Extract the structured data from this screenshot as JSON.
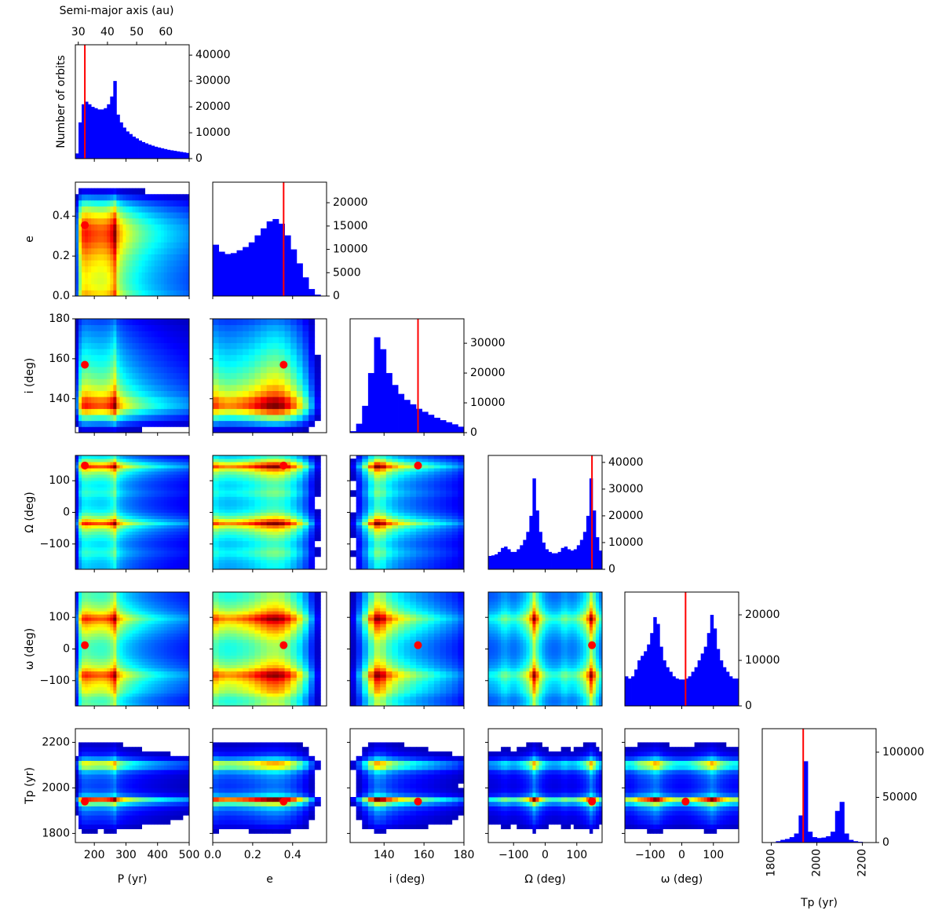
{
  "chart_data": {
    "type": "corner",
    "hist_color": "blue",
    "truth_color": "red",
    "hist_ylabel": "Number of orbits",
    "top_axis": {
      "label": "Semi-major axis (au)",
      "lim": [
        29,
        68
      ],
      "ticks": [
        30,
        40,
        50,
        60
      ]
    },
    "parameters": [
      {
        "label": "P (yr)",
        "lim": [
          140,
          500
        ],
        "ticks": [
          200,
          300,
          400,
          500
        ],
        "truth": 170,
        "bins": [
          140,
          150,
          160,
          170,
          180,
          190,
          200,
          210,
          220,
          230,
          240,
          250,
          260,
          270,
          280,
          290,
          300,
          310,
          320,
          330,
          340,
          350,
          360,
          370,
          380,
          390,
          400,
          410,
          420,
          430,
          440,
          450,
          460,
          470,
          480,
          490,
          500
        ],
        "counts": [
          2000,
          14000,
          21000,
          22000,
          21000,
          20000,
          19500,
          19000,
          19000,
          19500,
          21000,
          24000,
          30000,
          17000,
          14000,
          12000,
          10500,
          9500,
          8500,
          7800,
          7000,
          6400,
          5900,
          5400,
          5000,
          4600,
          4300,
          4000,
          3700,
          3400,
          3200,
          3000,
          2800,
          2600,
          2400,
          2200
        ],
        "hist_ylim": [
          0,
          44000
        ],
        "hist_yticks": [
          0,
          10000,
          20000,
          30000,
          40000
        ]
      },
      {
        "label": "e",
        "lim": [
          0,
          0.57
        ],
        "ticks": [
          {
            "value": 0,
            "label": "0.0"
          },
          {
            "value": 0.2,
            "label": "0.2"
          },
          {
            "value": 0.4,
            "label": "0.4"
          }
        ],
        "truth": 0.355,
        "bins": [
          0,
          0.03,
          0.06,
          0.09,
          0.12,
          0.15,
          0.18,
          0.21,
          0.24,
          0.27,
          0.3,
          0.33,
          0.36,
          0.39,
          0.42,
          0.45,
          0.48,
          0.51,
          0.54,
          0.57
        ],
        "counts": [
          11000,
          9500,
          9000,
          9200,
          9800,
          10500,
          11500,
          13000,
          14500,
          16000,
          16500,
          15500,
          13000,
          10000,
          7000,
          4000,
          1500,
          300,
          0
        ],
        "hist_ylim": [
          0,
          24400
        ],
        "hist_yticks": [
          0,
          5000,
          10000,
          15000,
          20000
        ]
      },
      {
        "label": "i (deg)",
        "lim": [
          123,
          180
        ],
        "ticks": [
          140,
          160,
          180
        ],
        "truth": 157,
        "bins": [
          123,
          126,
          129,
          132,
          135,
          138,
          141,
          144,
          147,
          150,
          153,
          156,
          159,
          162,
          165,
          168,
          171,
          174,
          177,
          180
        ],
        "counts": [
          500,
          3000,
          9000,
          20000,
          32000,
          28000,
          20000,
          16000,
          13000,
          11000,
          9500,
          8000,
          7000,
          6000,
          5000,
          4200,
          3500,
          2800,
          2000
        ],
        "hist_ylim": [
          0,
          38200
        ],
        "hist_yticks": [
          0,
          10000,
          20000,
          30000
        ]
      },
      {
        "label": "Ω (deg)",
        "lim": [
          -180,
          180
        ],
        "ticks": [
          {
            "value": -100,
            "label": "−100"
          },
          0,
          100
        ],
        "truth": 148,
        "bins": [
          -180,
          -170,
          -160,
          -150,
          -140,
          -130,
          -120,
          -110,
          -100,
          -90,
          -80,
          -70,
          -60,
          -50,
          -40,
          -30,
          -20,
          -10,
          0,
          10,
          20,
          30,
          40,
          50,
          60,
          70,
          80,
          90,
          100,
          110,
          120,
          130,
          140,
          150,
          160,
          170,
          180
        ],
        "counts": [
          5000,
          5200,
          5600,
          6500,
          8000,
          8500,
          7500,
          6500,
          6500,
          7500,
          9000,
          11000,
          14000,
          20000,
          34000,
          22000,
          14000,
          10000,
          7500,
          6500,
          6000,
          6000,
          6500,
          8000,
          8500,
          7500,
          7000,
          7500,
          9000,
          11000,
          14000,
          20000,
          34000,
          22000,
          12000,
          7000
        ],
        "hist_ylim": [
          0,
          42600
        ],
        "hist_yticks": [
          0,
          10000,
          20000,
          30000,
          40000
        ]
      },
      {
        "label": "ω (deg)",
        "lim": [
          -180,
          180
        ],
        "ticks": [
          {
            "value": -100,
            "label": "−100"
          },
          0,
          100
        ],
        "truth": 12,
        "bins": [
          -180,
          -170,
          -160,
          -150,
          -140,
          -130,
          -120,
          -110,
          -100,
          -90,
          -80,
          -70,
          -60,
          -50,
          -40,
          -30,
          -20,
          -10,
          0,
          10,
          20,
          30,
          40,
          50,
          60,
          70,
          80,
          90,
          100,
          110,
          120,
          130,
          140,
          150,
          160,
          170,
          180
        ],
        "counts": [
          6500,
          6000,
          6500,
          8000,
          10000,
          11000,
          12000,
          13500,
          16000,
          19500,
          18000,
          13000,
          10000,
          8500,
          7500,
          6500,
          6000,
          5800,
          5800,
          6000,
          6500,
          7500,
          8500,
          10000,
          11500,
          13000,
          16000,
          20000,
          17000,
          12500,
          10000,
          8500,
          7500,
          6500,
          6000,
          6000
        ],
        "hist_ylim": [
          0,
          25000
        ],
        "hist_yticks": [
          0,
          10000,
          20000
        ]
      },
      {
        "label": "Tp (yr)",
        "lim": [
          1760,
          2260
        ],
        "ticks": [
          1800,
          2000,
          2200
        ],
        "truth": 1940,
        "bins": [
          1760,
          1780,
          1800,
          1820,
          1840,
          1860,
          1880,
          1900,
          1920,
          1940,
          1960,
          1980,
          2000,
          2020,
          2040,
          2060,
          2080,
          2100,
          2120,
          2140,
          2160,
          2180,
          2200,
          2220,
          2240,
          2260
        ],
        "counts": [
          0,
          0,
          500,
          1500,
          3000,
          4000,
          6000,
          10000,
          30000,
          90000,
          12000,
          6000,
          5000,
          5500,
          7000,
          12000,
          35000,
          45000,
          10000,
          3000,
          1500,
          800,
          300,
          0,
          0
        ],
        "hist_ylim": [
          0,
          126000
        ],
        "hist_yticks": [
          0,
          50000,
          100000
        ]
      }
    ]
  }
}
